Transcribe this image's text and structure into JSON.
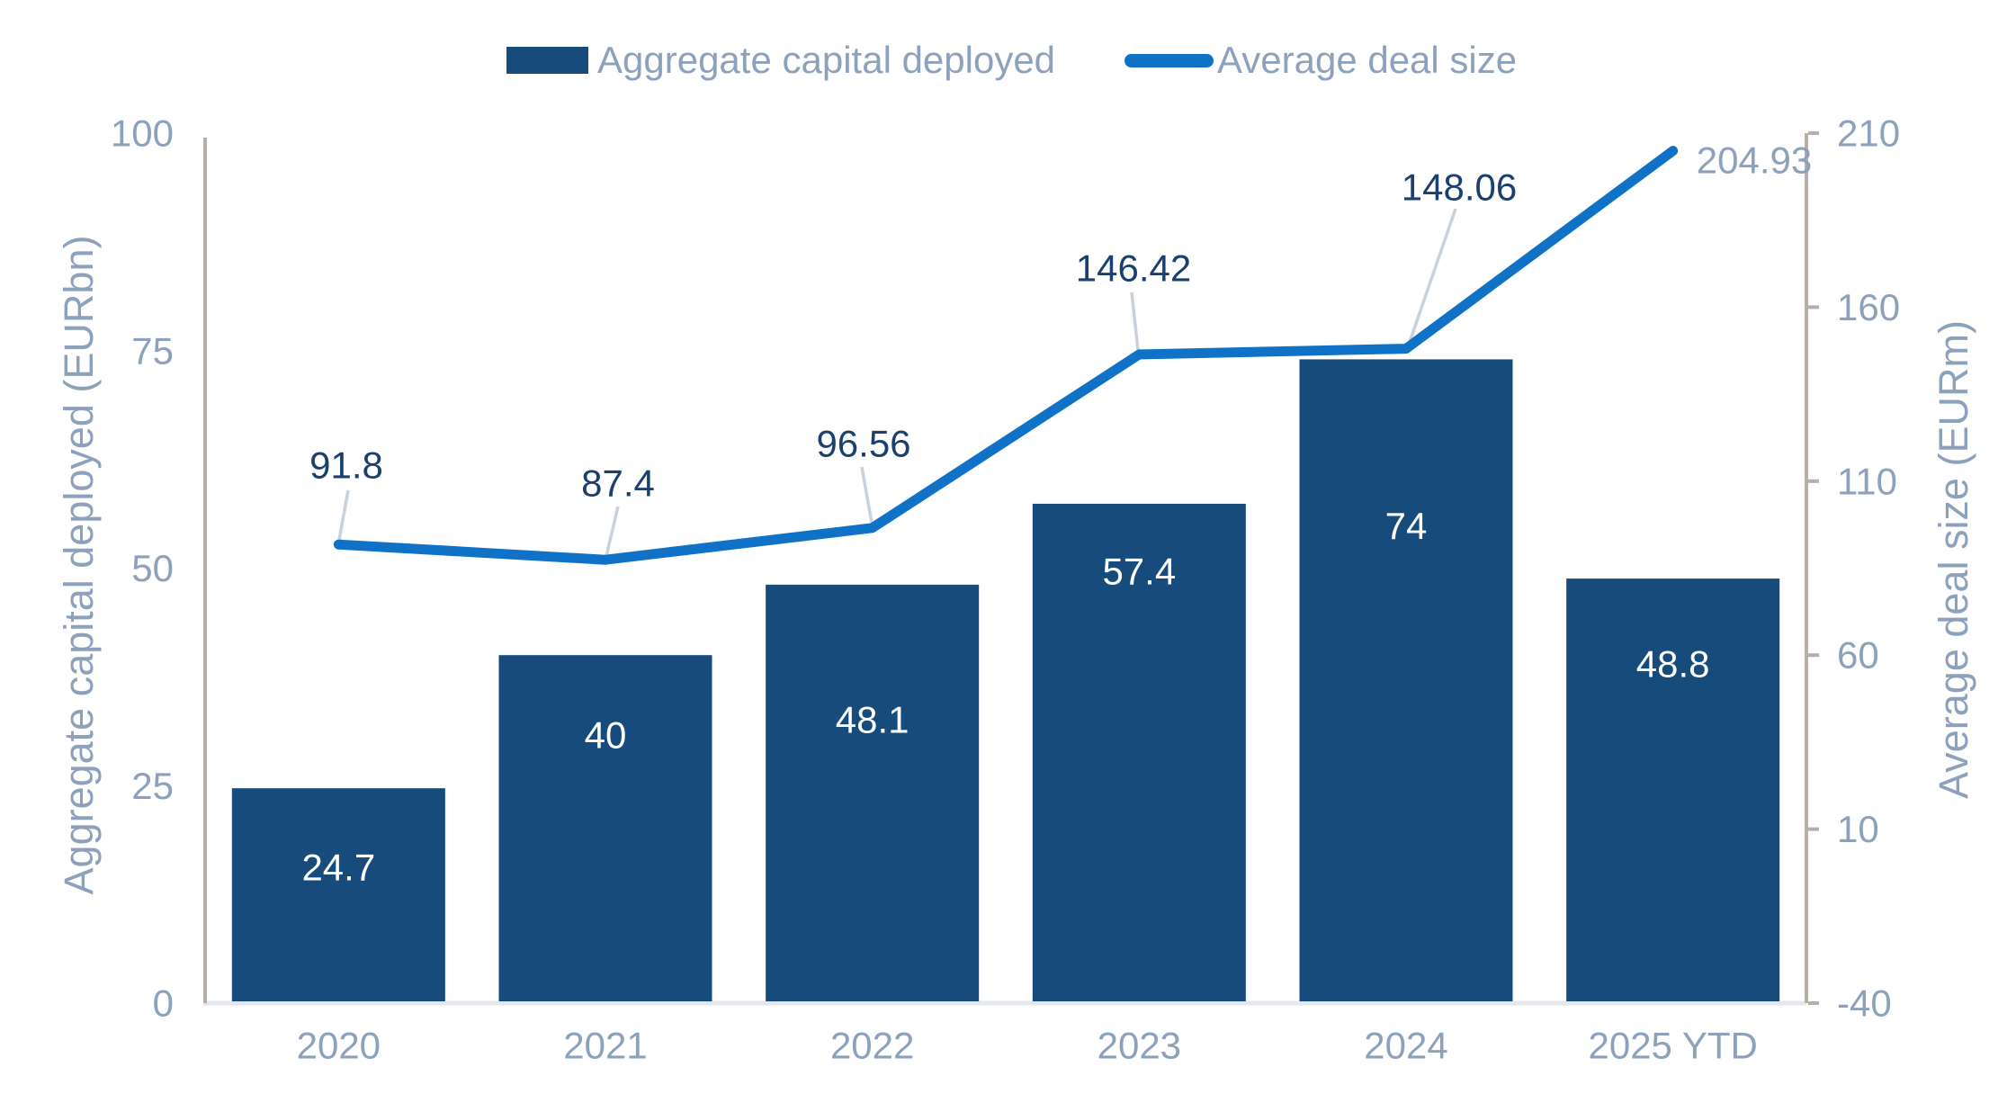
{
  "chart_data": {
    "type": "bar+line",
    "categories": [
      "2020",
      "2021",
      "2022",
      "2023",
      "2024",
      "2025 YTD"
    ],
    "series": [
      {
        "name": "Aggregate capital deployed",
        "type": "bar",
        "axis": "left",
        "values": [
          24.7,
          40,
          48.1,
          57.4,
          74,
          48.8
        ],
        "labels": [
          "24.7",
          "40",
          "48.1",
          "57.4",
          "74",
          "48.8"
        ]
      },
      {
        "name": "Average deal size",
        "type": "line",
        "axis": "right",
        "values": [
          91.8,
          87.4,
          96.56,
          146.42,
          148.06,
          204.93
        ],
        "labels": [
          "91.8",
          "87.4",
          "96.56",
          "146.42",
          "148.06",
          "204.93"
        ]
      }
    ],
    "left_axis": {
      "title": "Aggregate capital deployed (EURbn)",
      "ticks": [
        0,
        25,
        50,
        75,
        100
      ],
      "range": [
        0,
        100
      ]
    },
    "right_axis": {
      "title": "Average deal size (EURm)",
      "ticks": [
        -40,
        10,
        60,
        110,
        160,
        210
      ],
      "range": [
        -40,
        210
      ]
    },
    "legend": {
      "position": "top",
      "items": [
        "Aggregate capital deployed",
        "Average deal size"
      ]
    },
    "grid": false
  },
  "colors": {
    "bar": "#164B7C",
    "line": "#1072C6",
    "data_label": "#1B3F6E",
    "data_label_muted": "#8DA1BC",
    "bar_label": "#FFFFFF",
    "axis_text": "#8DA1BC",
    "axis_line": "#B5AFA4",
    "baseline": "#E4E7EC",
    "leader_line": "#C9D1DC"
  }
}
